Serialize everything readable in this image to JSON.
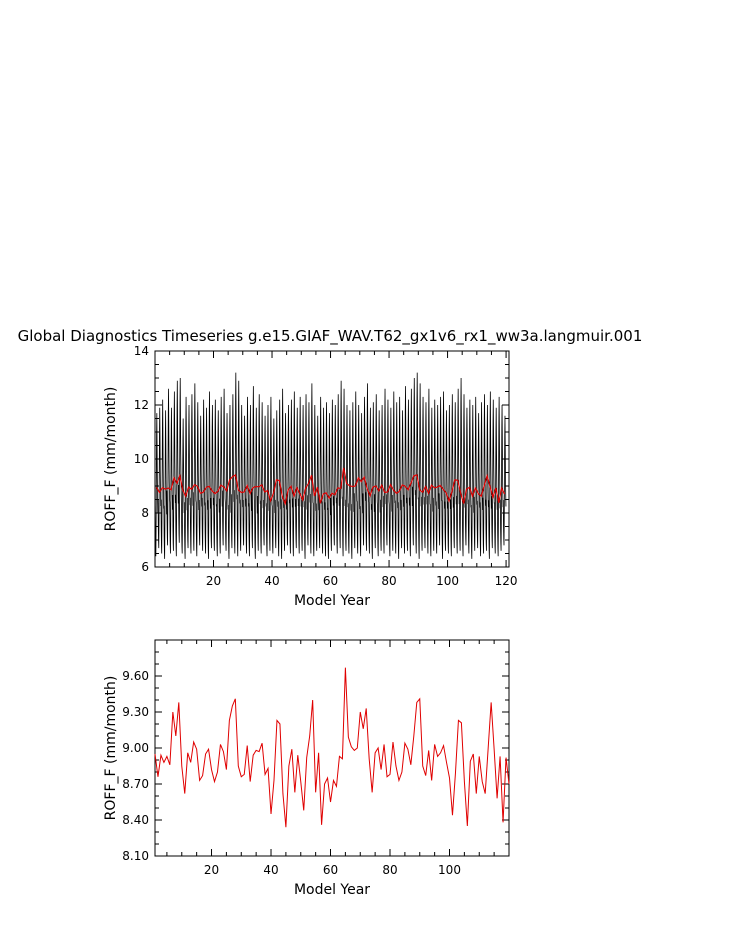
{
  "title": "Global Diagnostics Timeseries g.e15.GIAF_WAV.T62_gx1v6_rx1_ww3a.langmuir.001",
  "colors": {
    "monthly": "#000000",
    "annual": "#e00000",
    "axes": "#000000"
  },
  "chart_data": [
    {
      "type": "line",
      "xlabel": "Model Year",
      "ylabel": "ROFF_F (mm/month)",
      "xlim": [
        0,
        121
      ],
      "ylim": [
        6,
        14
      ],
      "xticks": [
        20,
        40,
        60,
        80,
        100,
        120
      ],
      "yticks": [
        6,
        8,
        10,
        12,
        14
      ],
      "xtick_labels": [
        "20",
        "40",
        "60",
        "80",
        "100",
        "120"
      ],
      "ytick_labels": [
        "6",
        "8",
        "10",
        "12",
        "14"
      ],
      "series": [
        {
          "role": "monthly",
          "color": "#000000",
          "annual_peaks": [
            11.7,
            11.9,
            12.2,
            11.8,
            12.6,
            11.9,
            12.5,
            12.9,
            13.0,
            11.5,
            12.3,
            12.0,
            12.4,
            12.8,
            12.1,
            11.6,
            12.2,
            11.9,
            12.5,
            12.0,
            12.2,
            11.8,
            12.3,
            12.6,
            11.7,
            12.0,
            12.4,
            13.2,
            12.9,
            12.0,
            11.6,
            12.3,
            12.0,
            12.7,
            11.9,
            12.4,
            12.1,
            11.6,
            12.0,
            12.3,
            11.5,
            11.8,
            12.2,
            12.6,
            11.7,
            12.0,
            12.2,
            12.5,
            11.9,
            12.3,
            12.0,
            12.4,
            12.1,
            12.8,
            12.0,
            11.6,
            12.3,
            11.9,
            12.1,
            11.7,
            12.2,
            12.0,
            12.4,
            12.9,
            12.6,
            12.0,
            11.8,
            12.1,
            12.5,
            12.0,
            11.7,
            12.3,
            12.8,
            11.9,
            12.1,
            12.4,
            11.8,
            12.0,
            12.6,
            12.2,
            11.9,
            12.5,
            12.1,
            12.3,
            11.8,
            12.7,
            12.2,
            12.6,
            13.0,
            13.2,
            12.8,
            12.3,
            12.1,
            12.6,
            11.9,
            12.2,
            12.0,
            12.3,
            12.5,
            11.8,
            12.0,
            12.4,
            12.1,
            12.6,
            13.0,
            12.4,
            11.9,
            12.2,
            12.0,
            12.3,
            11.7,
            12.1,
            12.4,
            12.0,
            12.5,
            12.2,
            11.9,
            12.3,
            12.0,
            11.6
          ],
          "annual_troughs": [
            6.4,
            6.7,
            6.5,
            6.3,
            6.8,
            6.5,
            6.6,
            6.4,
            6.9,
            6.5,
            6.3,
            6.7,
            6.5,
            6.6,
            6.4,
            6.8,
            6.6,
            6.5,
            6.3,
            6.7,
            6.6,
            6.4,
            6.5,
            6.8,
            6.6,
            6.3,
            6.7,
            6.5,
            6.4,
            6.6,
            6.8,
            6.5,
            6.4,
            6.7,
            6.3,
            6.6,
            6.5,
            6.8,
            6.4,
            6.6,
            6.5,
            6.7,
            6.4,
            6.3,
            6.6,
            6.8,
            6.5,
            6.4,
            6.7,
            6.5,
            6.6,
            6.3,
            6.8,
            6.5,
            6.4,
            6.6,
            6.7,
            6.5,
            6.4,
            6.3,
            6.6,
            6.8,
            6.5,
            6.7,
            6.4,
            6.6,
            6.5,
            6.3,
            6.7,
            6.5,
            6.4,
            6.8,
            6.6,
            6.5,
            6.3,
            6.7,
            6.4,
            6.6,
            6.5,
            6.8,
            6.4,
            6.6,
            6.5,
            6.3,
            6.7,
            6.5,
            6.6,
            6.4,
            6.8,
            6.5,
            6.3,
            6.6,
            6.7,
            6.5,
            6.4,
            6.6,
            6.5,
            6.8,
            6.3,
            6.6,
            6.5,
            6.4,
            6.7,
            6.5,
            6.6,
            6.4,
            6.8,
            6.5,
            6.3,
            6.6,
            6.7,
            6.4,
            6.5,
            6.6,
            6.3,
            6.7,
            6.5,
            6.4,
            6.6,
            6.8
          ]
        },
        {
          "role": "annual",
          "color": "#e00000",
          "x": [
            1,
            2,
            3,
            4,
            5,
            6,
            7,
            8,
            9,
            10,
            11,
            12,
            13,
            14,
            15,
            16,
            17,
            18,
            19,
            20,
            21,
            22,
            23,
            24,
            25,
            26,
            27,
            28,
            29,
            30,
            31,
            32,
            33,
            34,
            35,
            36,
            37,
            38,
            39,
            40,
            41,
            42,
            43,
            44,
            45,
            46,
            47,
            48,
            49,
            50,
            51,
            52,
            53,
            54,
            55,
            56,
            57,
            58,
            59,
            60,
            61,
            62,
            63,
            64,
            65,
            66,
            67,
            68,
            69,
            70,
            71,
            72,
            73,
            74,
            75,
            76,
            77,
            78,
            79,
            80,
            81,
            82,
            83,
            84,
            85,
            86,
            87,
            88,
            89,
            90,
            91,
            92,
            93,
            94,
            95,
            96,
            97,
            98,
            99,
            100,
            101,
            102,
            103,
            104,
            105,
            106,
            107,
            108,
            109,
            110,
            111,
            112,
            113,
            114,
            115,
            116,
            117,
            118,
            119,
            120
          ],
          "values": [
            8.95,
            8.76,
            8.94,
            8.88,
            8.93,
            8.86,
            9.3,
            9.1,
            9.38,
            8.85,
            8.62,
            8.96,
            8.88,
            9.05,
            8.99,
            8.73,
            8.77,
            8.95,
            8.99,
            8.82,
            8.72,
            8.8,
            9.03,
            8.97,
            8.82,
            9.23,
            9.35,
            9.41,
            8.85,
            8.76,
            8.78,
            9.02,
            8.72,
            8.94,
            8.98,
            8.97,
            9.04,
            8.78,
            8.83,
            8.45,
            8.73,
            9.23,
            9.2,
            8.62,
            8.34,
            8.85,
            8.99,
            8.63,
            8.94,
            8.72,
            8.48,
            8.92,
            9.1,
            9.4,
            8.63,
            8.96,
            8.36,
            8.7,
            8.75,
            8.55,
            8.73,
            8.68,
            8.93,
            8.91,
            9.67,
            9.09,
            9.01,
            8.98,
            9.0,
            9.3,
            9.16,
            9.33,
            8.91,
            8.63,
            8.96,
            9.0,
            8.82,
            9.03,
            8.76,
            8.78,
            9.05,
            8.85,
            8.73,
            8.8,
            9.04,
            8.99,
            8.86,
            9.1,
            9.38,
            9.41,
            8.85,
            8.77,
            8.98,
            8.73,
            9.03,
            8.93,
            8.96,
            9.02,
            8.88,
            8.75,
            8.44,
            8.79,
            9.23,
            9.21,
            8.72,
            8.35,
            8.89,
            8.95,
            8.62,
            8.93,
            8.72,
            8.62,
            9.0,
            9.38,
            8.99,
            8.58,
            8.93,
            8.38,
            8.92,
            8.7
          ]
        }
      ]
    },
    {
      "type": "line",
      "xlabel": "Model Year",
      "ylabel": "ROFF_F (mm/month)",
      "xlim": [
        1,
        120
      ],
      "ylim": [
        8.1,
        9.9
      ],
      "xticks": [
        20,
        40,
        60,
        80,
        100
      ],
      "yticks": [
        8.1,
        8.4,
        8.7,
        9.0,
        9.3,
        9.6
      ],
      "xtick_labels": [
        "20",
        "40",
        "60",
        "80",
        "100"
      ],
      "ytick_labels": [
        "8.10",
        "8.40",
        "8.70",
        "9.00",
        "9.30",
        "9.60"
      ],
      "series": [
        {
          "role": "annual",
          "color": "#e00000",
          "x": [
            1,
            2,
            3,
            4,
            5,
            6,
            7,
            8,
            9,
            10,
            11,
            12,
            13,
            14,
            15,
            16,
            17,
            18,
            19,
            20,
            21,
            22,
            23,
            24,
            25,
            26,
            27,
            28,
            29,
            30,
            31,
            32,
            33,
            34,
            35,
            36,
            37,
            38,
            39,
            40,
            41,
            42,
            43,
            44,
            45,
            46,
            47,
            48,
            49,
            50,
            51,
            52,
            53,
            54,
            55,
            56,
            57,
            58,
            59,
            60,
            61,
            62,
            63,
            64,
            65,
            66,
            67,
            68,
            69,
            70,
            71,
            72,
            73,
            74,
            75,
            76,
            77,
            78,
            79,
            80,
            81,
            82,
            83,
            84,
            85,
            86,
            87,
            88,
            89,
            90,
            91,
            92,
            93,
            94,
            95,
            96,
            97,
            98,
            99,
            100,
            101,
            102,
            103,
            104,
            105,
            106,
            107,
            108,
            109,
            110,
            111,
            112,
            113,
            114,
            115,
            116,
            117,
            118,
            119,
            120
          ],
          "values": [
            8.95,
            8.76,
            8.94,
            8.88,
            8.93,
            8.86,
            9.3,
            9.1,
            9.38,
            8.85,
            8.62,
            8.96,
            8.88,
            9.05,
            8.99,
            8.73,
            8.77,
            8.95,
            8.99,
            8.82,
            8.72,
            8.8,
            9.03,
            8.97,
            8.82,
            9.23,
            9.35,
            9.41,
            8.85,
            8.76,
            8.78,
            9.02,
            8.72,
            8.94,
            8.98,
            8.97,
            9.04,
            8.78,
            8.83,
            8.45,
            8.73,
            9.23,
            9.2,
            8.62,
            8.34,
            8.85,
            8.99,
            8.63,
            8.94,
            8.72,
            8.48,
            8.92,
            9.1,
            9.4,
            8.63,
            8.96,
            8.36,
            8.7,
            8.75,
            8.55,
            8.73,
            8.68,
            8.93,
            8.91,
            9.67,
            9.09,
            9.01,
            8.98,
            9.0,
            9.3,
            9.16,
            9.33,
            8.91,
            8.63,
            8.96,
            9.0,
            8.82,
            9.03,
            8.76,
            8.78,
            9.05,
            8.85,
            8.73,
            8.8,
            9.04,
            8.99,
            8.86,
            9.1,
            9.38,
            9.41,
            8.85,
            8.77,
            8.98,
            8.73,
            9.03,
            8.93,
            8.96,
            9.02,
            8.88,
            8.75,
            8.44,
            8.79,
            9.23,
            9.21,
            8.72,
            8.35,
            8.89,
            8.95,
            8.62,
            8.93,
            8.72,
            8.62,
            9.0,
            9.38,
            8.99,
            8.58,
            8.93,
            8.38,
            8.92,
            8.7
          ]
        }
      ]
    }
  ]
}
